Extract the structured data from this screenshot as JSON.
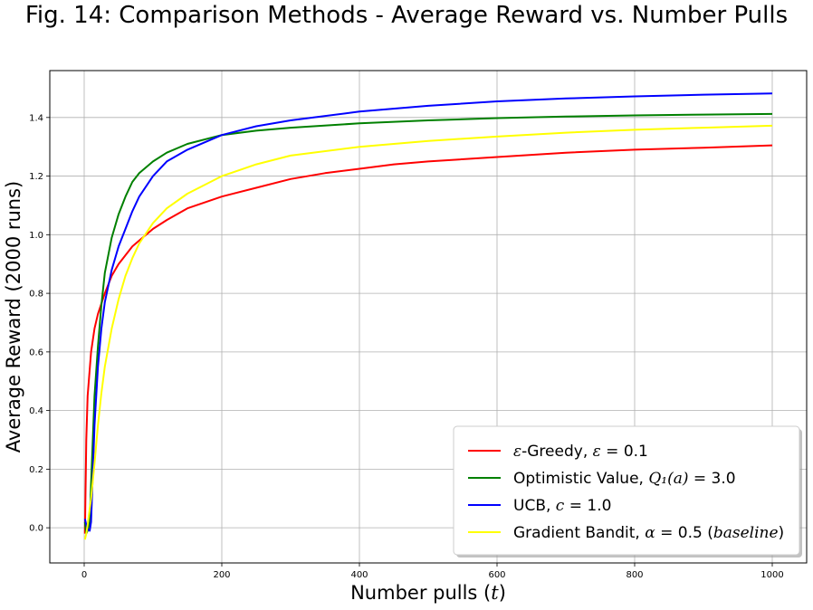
{
  "chart_data": {
    "type": "line",
    "title": "Fig. 14: Comparison Methods - Average Reward vs. Number Pulls",
    "xlabel": "Number pulls (t)",
    "ylabel": "Average Reward (2000 runs)",
    "xlim": [
      -50,
      1050
    ],
    "ylim": [
      -0.12,
      1.56
    ],
    "xticks": [
      0,
      200,
      400,
      600,
      800,
      1000
    ],
    "xtick_labels": [
      "0",
      "200",
      "400",
      "600",
      "800",
      "1000"
    ],
    "yticks": [
      0.0,
      0.2,
      0.4,
      0.6,
      0.8,
      1.0,
      1.2,
      1.4
    ],
    "ytick_labels": [
      "0.0",
      "0.2",
      "0.4",
      "0.6",
      "0.8",
      "1.0",
      "1.2",
      "1.4"
    ],
    "grid": true,
    "legend_position": "bottom-right",
    "series": [
      {
        "name": "ε-Greedy, ε = 0.1",
        "color": "#ff0000",
        "points": [
          [
            1,
            -0.02
          ],
          [
            3,
            0.3
          ],
          [
            5,
            0.45
          ],
          [
            10,
            0.6
          ],
          [
            15,
            0.68
          ],
          [
            20,
            0.73
          ],
          [
            30,
            0.8
          ],
          [
            40,
            0.86
          ],
          [
            50,
            0.9
          ],
          [
            60,
            0.93
          ],
          [
            70,
            0.96
          ],
          [
            80,
            0.98
          ],
          [
            100,
            1.02
          ],
          [
            120,
            1.05
          ],
          [
            150,
            1.09
          ],
          [
            200,
            1.13
          ],
          [
            250,
            1.16
          ],
          [
            300,
            1.19
          ],
          [
            350,
            1.21
          ],
          [
            400,
            1.225
          ],
          [
            450,
            1.24
          ],
          [
            500,
            1.25
          ],
          [
            600,
            1.265
          ],
          [
            700,
            1.28
          ],
          [
            800,
            1.29
          ],
          [
            900,
            1.297
          ],
          [
            1000,
            1.305
          ]
        ]
      },
      {
        "name": "Optimistic Value, Q1(a) = 3.0",
        "color": "#008000",
        "points": [
          [
            1,
            0.02
          ],
          [
            3,
            -0.02
          ],
          [
            5,
            -0.01
          ],
          [
            8,
            0.02
          ],
          [
            10,
            0.15
          ],
          [
            15,
            0.45
          ],
          [
            20,
            0.62
          ],
          [
            25,
            0.76
          ],
          [
            30,
            0.87
          ],
          [
            40,
            0.99
          ],
          [
            50,
            1.07
          ],
          [
            60,
            1.13
          ],
          [
            70,
            1.18
          ],
          [
            80,
            1.21
          ],
          [
            100,
            1.25
          ],
          [
            120,
            1.28
          ],
          [
            150,
            1.31
          ],
          [
            200,
            1.34
          ],
          [
            250,
            1.355
          ],
          [
            300,
            1.365
          ],
          [
            400,
            1.38
          ],
          [
            500,
            1.39
          ],
          [
            600,
            1.398
          ],
          [
            700,
            1.403
          ],
          [
            800,
            1.407
          ],
          [
            900,
            1.41
          ],
          [
            1000,
            1.412
          ]
        ]
      },
      {
        "name": "UCB, c = 1.0",
        "color": "#0000ff",
        "points": [
          [
            1,
            0.03
          ],
          [
            3,
            0.01
          ],
          [
            5,
            -0.005
          ],
          [
            8,
            -0.01
          ],
          [
            10,
            0.02
          ],
          [
            15,
            0.35
          ],
          [
            20,
            0.55
          ],
          [
            25,
            0.68
          ],
          [
            30,
            0.77
          ],
          [
            40,
            0.88
          ],
          [
            50,
            0.96
          ],
          [
            60,
            1.02
          ],
          [
            70,
            1.08
          ],
          [
            80,
            1.13
          ],
          [
            100,
            1.2
          ],
          [
            120,
            1.25
          ],
          [
            150,
            1.29
          ],
          [
            200,
            1.34
          ],
          [
            250,
            1.37
          ],
          [
            300,
            1.39
          ],
          [
            400,
            1.42
          ],
          [
            500,
            1.44
          ],
          [
            600,
            1.455
          ],
          [
            700,
            1.465
          ],
          [
            800,
            1.472
          ],
          [
            900,
            1.478
          ],
          [
            1000,
            1.482
          ]
        ]
      },
      {
        "name": "Gradient Bandit, α = 0.5 (baseline)",
        "color": "#ffff00",
        "points": [
          [
            1,
            -0.04
          ],
          [
            3,
            -0.02
          ],
          [
            5,
            0.01
          ],
          [
            10,
            0.1
          ],
          [
            15,
            0.22
          ],
          [
            20,
            0.35
          ],
          [
            25,
            0.46
          ],
          [
            30,
            0.55
          ],
          [
            40,
            0.68
          ],
          [
            50,
            0.78
          ],
          [
            60,
            0.86
          ],
          [
            70,
            0.92
          ],
          [
            80,
            0.97
          ],
          [
            100,
            1.04
          ],
          [
            120,
            1.09
          ],
          [
            150,
            1.14
          ],
          [
            200,
            1.2
          ],
          [
            250,
            1.24
          ],
          [
            300,
            1.27
          ],
          [
            400,
            1.3
          ],
          [
            500,
            1.32
          ],
          [
            600,
            1.335
          ],
          [
            700,
            1.348
          ],
          [
            800,
            1.358
          ],
          [
            900,
            1.365
          ],
          [
            1000,
            1.372
          ]
        ]
      }
    ]
  },
  "legend": {
    "items": [
      {
        "pre": "ε",
        "mid": "-Greedy, ",
        "var": "ε",
        "post": " = 0.1"
      },
      {
        "pre": "",
        "mid": "Optimistic Value, ",
        "var": "Q₁(a)",
        "post": " = 3.0"
      },
      {
        "pre": "",
        "mid": "UCB, ",
        "var": "c",
        "post": " = 1.0"
      },
      {
        "pre": "",
        "mid": "Gradient Bandit, ",
        "var": "α",
        "post": " = 0.5 (",
        "it2": "baseline",
        "post2": ")"
      }
    ]
  },
  "axis_labels": {
    "x_main": "Number pulls (",
    "x_var": "t",
    "x_end": ")"
  }
}
